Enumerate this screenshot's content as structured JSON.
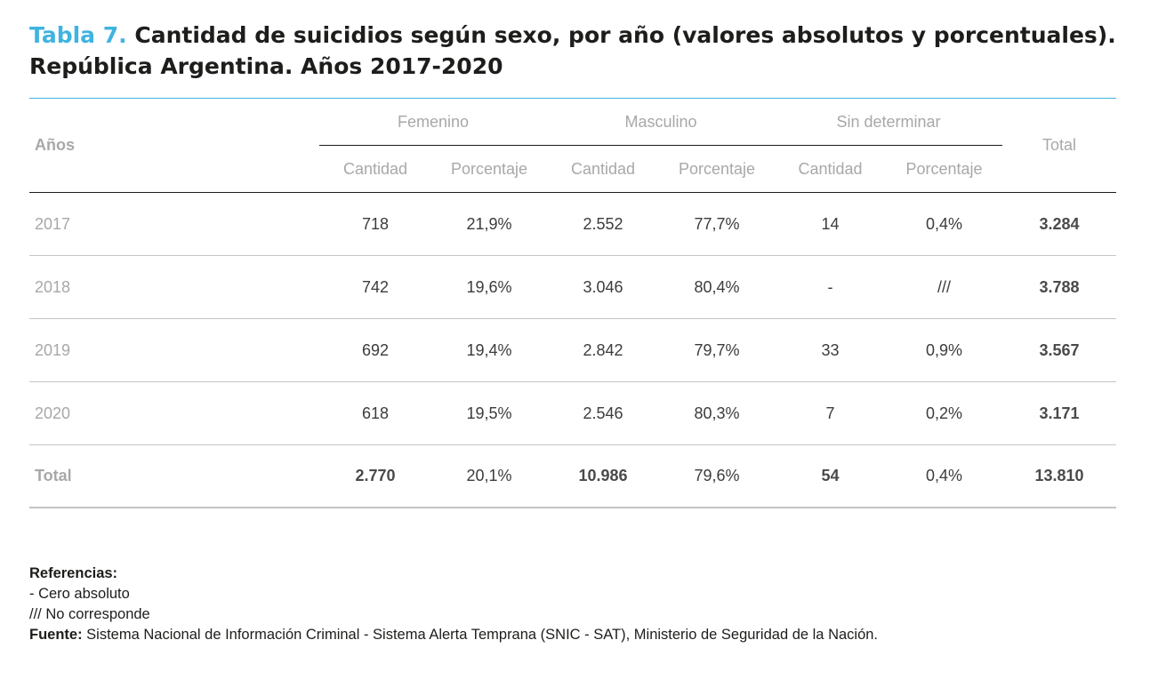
{
  "title": {
    "tag": "Tabla 7.",
    "line1": "Cantidad de suicidios según sexo, por año (valores absolutos y porcentuales).",
    "line2": "República Argentina. Años 2017-2020"
  },
  "table": {
    "header": {
      "years_label": "Años",
      "total_label": "Total",
      "groups": [
        "Femenino",
        "Masculino",
        "Sin determinar"
      ],
      "sub": [
        "Cantidad",
        "Porcentaje",
        "Cantidad",
        "Porcentaje",
        "Cantidad",
        "Porcentaje"
      ]
    },
    "rows": [
      {
        "year": "2017",
        "f_cant": "718",
        "f_pct": "21,9%",
        "m_cant": "2.552",
        "m_pct": "77,7%",
        "s_cant": "14",
        "s_pct": "0,4%",
        "total": "3.284"
      },
      {
        "year": "2018",
        "f_cant": "742",
        "f_pct": "19,6%",
        "m_cant": "3.046",
        "m_pct": "80,4%",
        "s_cant": "-",
        "s_pct": "///",
        "total": "3.788"
      },
      {
        "year": "2019",
        "f_cant": "692",
        "f_pct": "19,4%",
        "m_cant": "2.842",
        "m_pct": "79,7%",
        "s_cant": "33",
        "s_pct": "0,9%",
        "total": "3.567"
      },
      {
        "year": "2020",
        "f_cant": "618",
        "f_pct": "19,5%",
        "m_cant": "2.546",
        "m_pct": "80,3%",
        "s_cant": "7",
        "s_pct": "0,2%",
        "total": "3.171"
      }
    ],
    "total_row": {
      "label": "Total",
      "f_cant": "2.770",
      "f_pct": "20,1%",
      "m_cant": "10.986",
      "m_pct": "79,6%",
      "s_cant": "54",
      "s_pct": "0,4%",
      "total": "13.810"
    }
  },
  "notes": {
    "references_label": "Referencias:",
    "ref1": "- Cero absoluto",
    "ref2": "/// No corresponde",
    "source_label": "Fuente:",
    "source_text": " Sistema Nacional de Información Criminal - Sistema Alerta Temprana (SNIC - SAT), Ministerio de Seguridad de la Nación."
  }
}
